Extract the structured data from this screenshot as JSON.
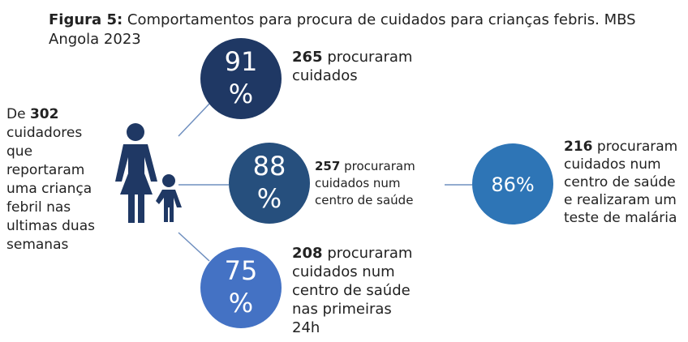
{
  "figure": {
    "label": "Figura 5:",
    "title": "Comportamentos para procura de cuidados para crianças febris. MBS",
    "title_cont": "Angola 2023"
  },
  "source": {
    "prefix": "De",
    "count": "302",
    "lines": [
      "cuidadores",
      "que",
      "reportaram",
      "uma criança",
      "febril nas",
      "ultimas duas",
      "semanas"
    ]
  },
  "nodes": [
    {
      "value": "91",
      "unit": "%",
      "count": "265",
      "lines": [
        "procuraram",
        "cuidados"
      ]
    },
    {
      "value": "88",
      "unit": "%",
      "count": "257",
      "lines": [
        "procuraram",
        "cuidados num",
        "centro de saúde"
      ]
    },
    {
      "value": "75",
      "unit": "%",
      "count": "208",
      "lines": [
        "procuraram",
        "cuidados num",
        "centro de saúde",
        "nas primeiras",
        "24h"
      ]
    },
    {
      "value": "86",
      "unit": "%",
      "count": "216",
      "lines": [
        "procuraram",
        "cuidados num",
        "centro de saúde",
        "e realizaram um",
        "teste de malária"
      ]
    }
  ]
}
